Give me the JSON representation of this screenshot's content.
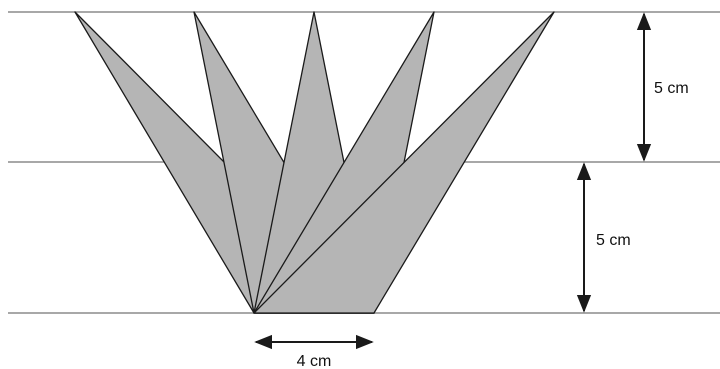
{
  "labels": {
    "upper_height": "5 cm",
    "lower_height": "5 cm",
    "base_width": "4 cm"
  },
  "colors": {
    "shade": "#b5b5b5",
    "stroke": "#1a1a1a",
    "guide_line": "#8c8c8c",
    "background": "#ffffff"
  }
}
